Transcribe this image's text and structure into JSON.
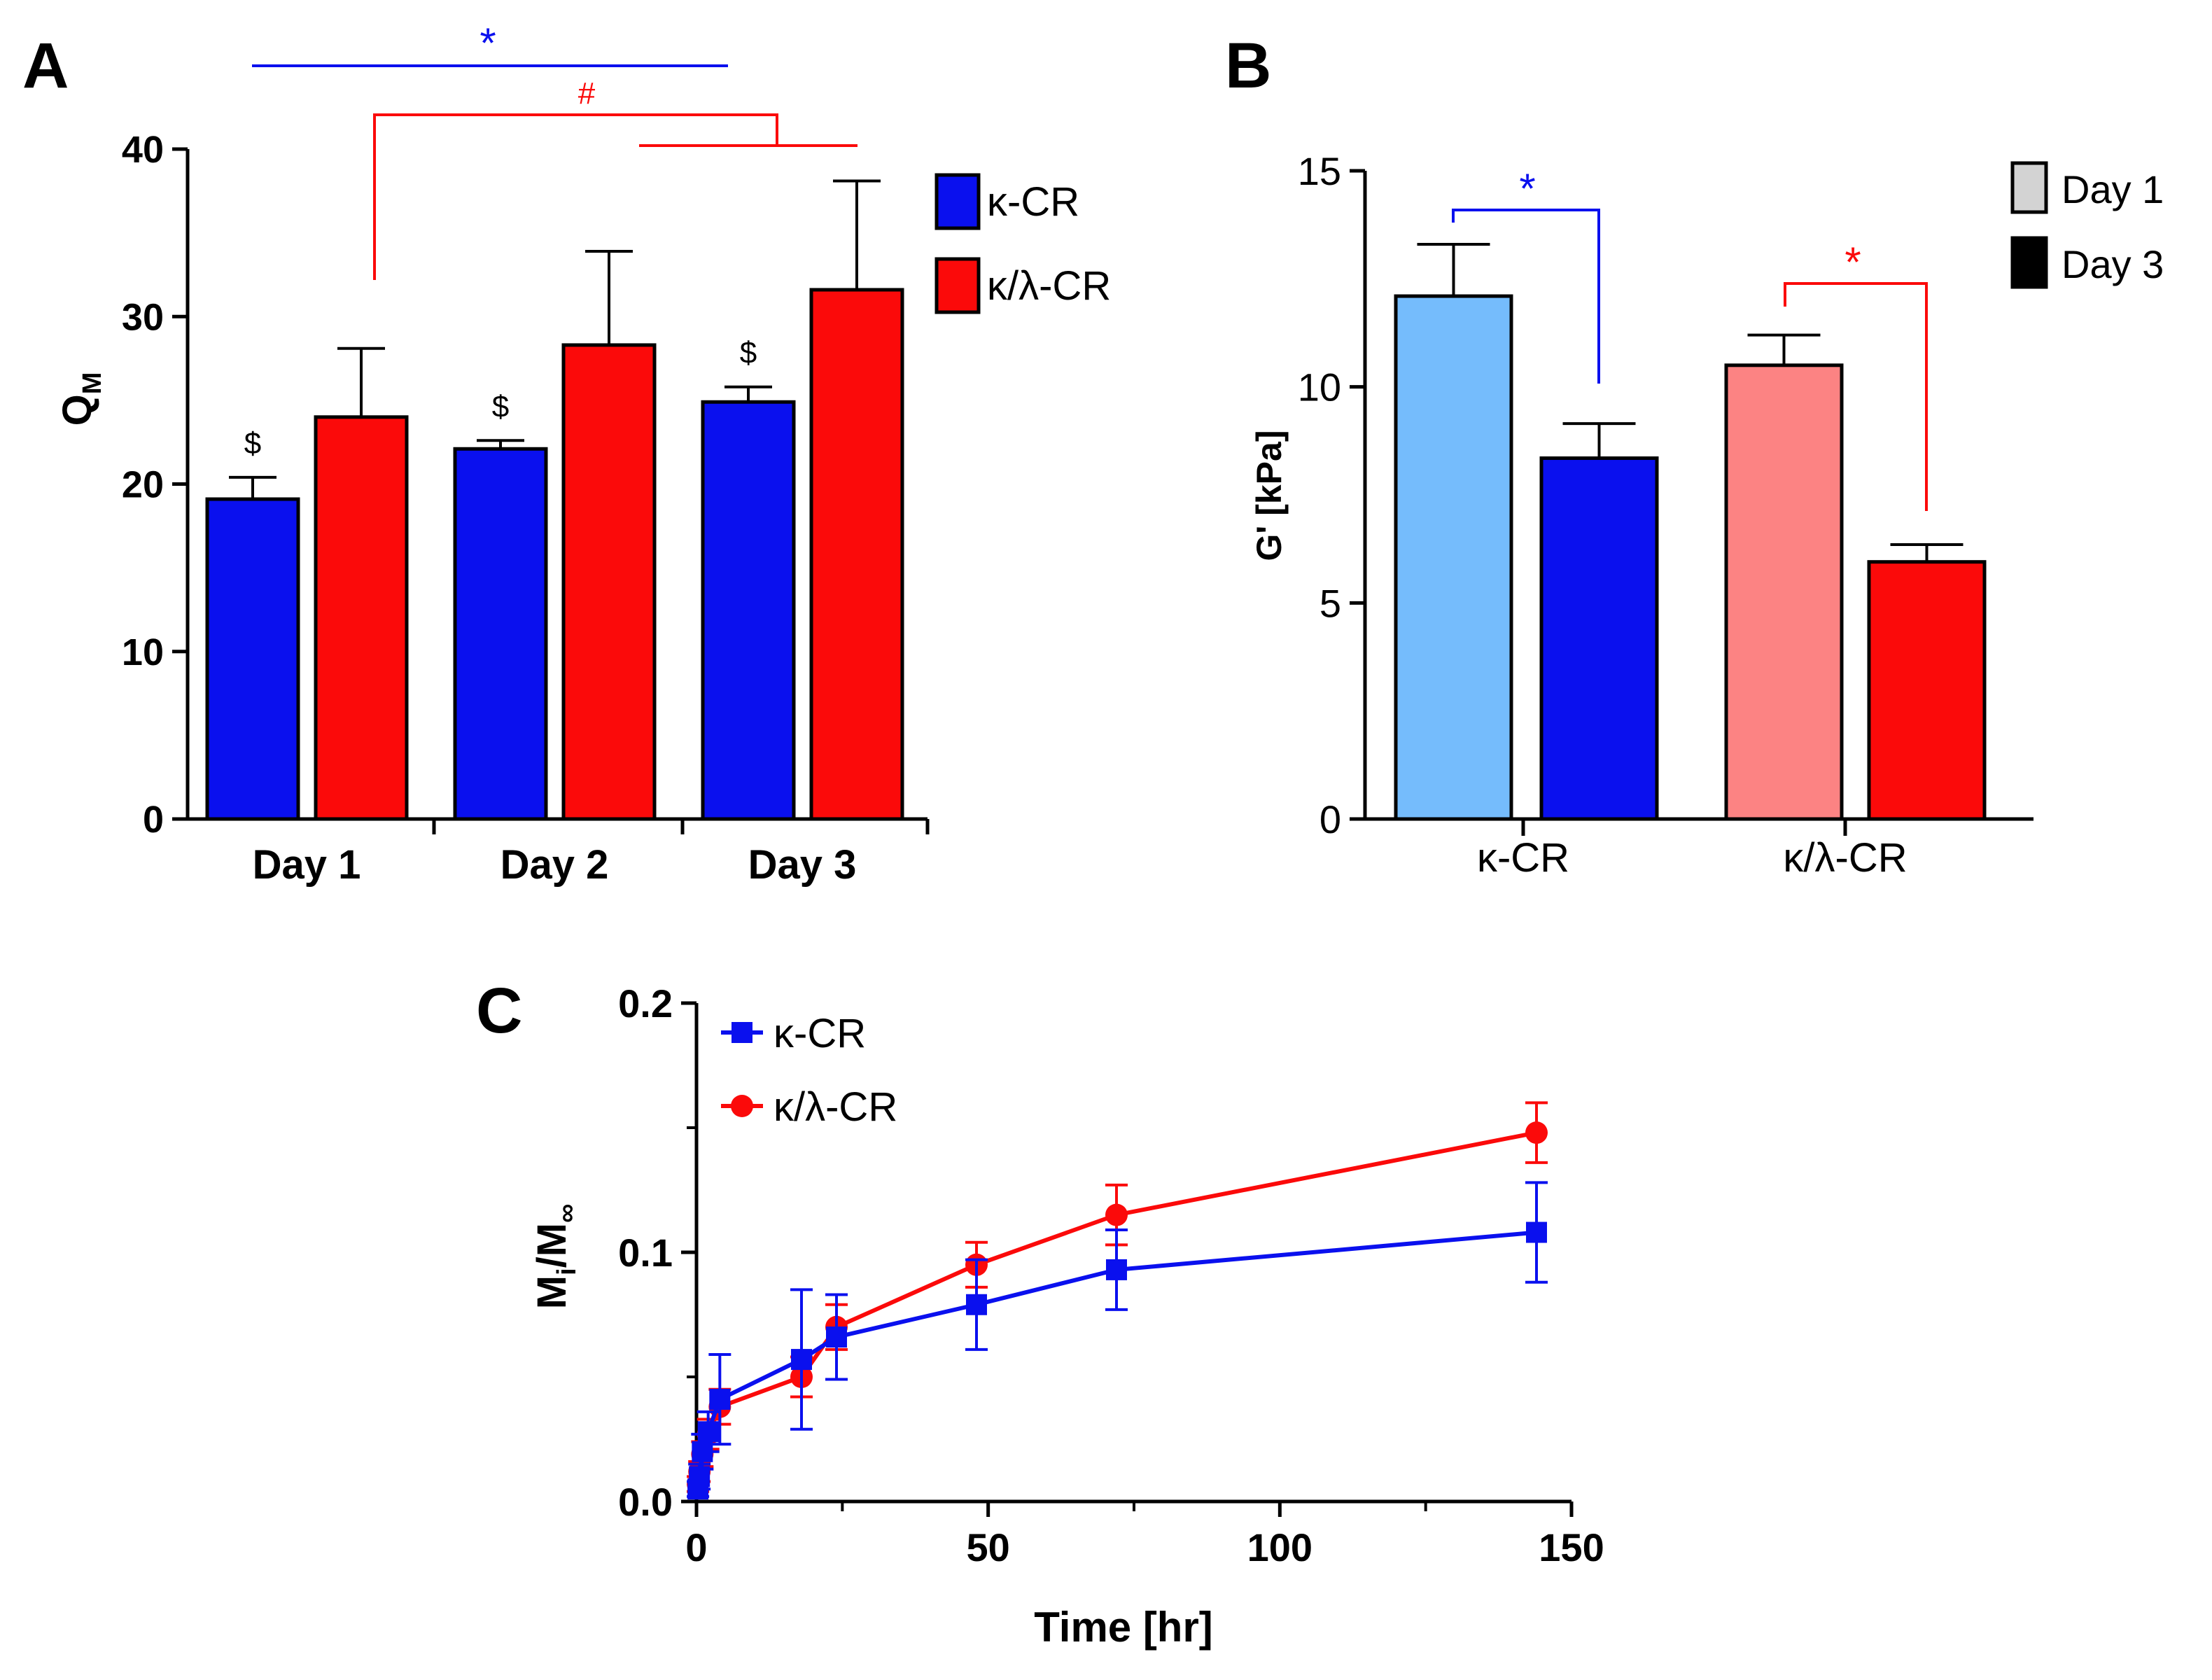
{
  "colors": {
    "blue": "#0a10ee",
    "red": "#fb0a0a",
    "light_blue": "#75bcfc",
    "light_red": "#fc8383",
    "axis": "#000000",
    "day1_legend": "#d3d3d3",
    "day3_legend": "#000000"
  },
  "chart_data": [
    {
      "panel": "A",
      "type": "bar",
      "title": "",
      "xlabel": "",
      "ylabel": "Q",
      "ylabel_sub": "M",
      "categories": [
        "Day 1",
        "Day 2",
        "Day 3"
      ],
      "ylim": [
        0,
        40
      ],
      "yticks": [
        0,
        10,
        20,
        30,
        40
      ],
      "series": [
        {
          "name": "κ-CR",
          "values": [
            19.1,
            22.1,
            24.9
          ],
          "errors": [
            1.3,
            0.5,
            0.9
          ]
        },
        {
          "name": "κ/λ-CR",
          "values": [
            24.0,
            28.3,
            31.6
          ],
          "errors": [
            4.1,
            5.6,
            6.5
          ]
        }
      ],
      "legend": [
        "κ-CR",
        "κ/λ-CR"
      ],
      "legend_position": "right",
      "annotations": {
        "dollar": "$",
        "star": "*",
        "hash": "#"
      }
    },
    {
      "panel": "B",
      "type": "bar",
      "title": "",
      "xlabel": "",
      "ylabel": "G' [kPa]",
      "categories": [
        "κ-CR",
        "κ/λ-CR"
      ],
      "ylim": [
        0,
        15
      ],
      "yticks": [
        0,
        5,
        10,
        15
      ],
      "series": [
        {
          "name": "Day 1",
          "values": [
            12.1,
            10.5
          ],
          "errors": [
            1.2,
            0.7
          ]
        },
        {
          "name": "Day 3",
          "values": [
            8.35,
            5.95
          ],
          "errors": [
            0.8,
            0.4
          ]
        }
      ],
      "legend": [
        "Day 1",
        "Day 3"
      ],
      "legend_position": "top-right",
      "annotations": {
        "star_blue": "*",
        "star_red": "*"
      }
    },
    {
      "panel": "C",
      "type": "line",
      "title": "",
      "xlabel": "Time [hr]",
      "ylabel": "M",
      "ylabel_sub1": "i",
      "ylabel_mid": "/M",
      "ylabel_sub2": "∞",
      "xlim": [
        0,
        150
      ],
      "ylim": [
        0,
        0.2
      ],
      "xticks": [
        0,
        50,
        100,
        150
      ],
      "yticks": [
        "0.0",
        "0.1",
        "0.2"
      ],
      "series": [
        {
          "name": "κ-CR",
          "marker": "square",
          "x": [
            0.25,
            0.5,
            1,
            2,
            4,
            18,
            24,
            48,
            72,
            144
          ],
          "y": [
            0.005,
            0.01,
            0.02,
            0.028,
            0.041,
            0.057,
            0.066,
            0.079,
            0.093,
            0.108
          ],
          "err": [
            0.003,
            0.005,
            0.007,
            0.008,
            0.018,
            0.028,
            0.017,
            0.018,
            0.016,
            0.02
          ]
        },
        {
          "name": "κ/λ-CR",
          "marker": "circle",
          "x": [
            0.25,
            0.5,
            1,
            2,
            4,
            18,
            24,
            48,
            72,
            144
          ],
          "y": [
            0.007,
            0.012,
            0.019,
            0.027,
            0.038,
            0.05,
            0.07,
            0.095,
            0.115,
            0.148
          ],
          "err": [
            0.003,
            0.004,
            0.005,
            0.006,
            0.007,
            0.008,
            0.009,
            0.009,
            0.012,
            0.012
          ]
        }
      ],
      "legend": [
        "κ-CR",
        "κ/λ-CR"
      ],
      "legend_position": "top-left"
    }
  ],
  "panel_labels": {
    "a": "A",
    "b": "B",
    "c": "C"
  }
}
